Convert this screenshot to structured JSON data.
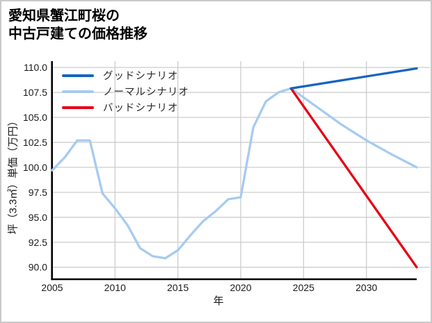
{
  "chart_data": {
    "type": "line",
    "title": "愛知県蟹江町桜の中古戸建ての価格推移",
    "title_lines": [
      "愛知県蟹江町桜の",
      "中古戸建ての価格推移"
    ],
    "xlabel": "年",
    "ylabel": "坪（3.3㎡）単価（万円）",
    "xlim": [
      2005,
      2034
    ],
    "ylim": [
      88.8,
      110.6
    ],
    "xticks": [
      2005,
      2010,
      2015,
      2020,
      2025,
      2030
    ],
    "yticks": [
      90.0,
      92.5,
      95.0,
      97.5,
      100.0,
      102.5,
      105.0,
      107.5,
      110.0
    ],
    "ytick_labels": [
      "90.0",
      "92.5",
      "95.0",
      "97.5",
      "100.0",
      "102.5",
      "105.0",
      "107.5",
      "110.0"
    ],
    "grid": true,
    "legend_position": "upper-left",
    "series": [
      {
        "name": "グッドシナリオ",
        "color": "#1565c0",
        "zorder": 3,
        "x": [
          2024,
          2034
        ],
        "values": [
          107.9,
          109.9
        ]
      },
      {
        "name": "ノーマルシナリオ",
        "color": "#a6cbf0",
        "zorder": 1,
        "x": [
          2005,
          2006,
          2007,
          2008,
          2009,
          2010,
          2011,
          2012,
          2013,
          2014,
          2015,
          2016,
          2017,
          2018,
          2019,
          2020,
          2021,
          2022,
          2023,
          2024,
          2026,
          2028,
          2030,
          2032,
          2034
        ],
        "values": [
          99.7,
          101.0,
          102.7,
          102.7,
          97.4,
          95.9,
          94.2,
          91.9,
          91.1,
          90.9,
          91.7,
          93.2,
          94.6,
          95.6,
          96.8,
          97.0,
          104.0,
          106.6,
          107.5,
          107.9,
          106.1,
          104.3,
          102.7,
          101.3,
          100.0
        ]
      },
      {
        "name": "バッドシナリオ",
        "color": "#e60012",
        "zorder": 2,
        "x": [
          2024,
          2034
        ],
        "values": [
          107.9,
          90.0
        ]
      }
    ],
    "colors": {
      "grid": "#cdcdcd",
      "spine": "#000000",
      "tick_label": "#1a1a1a",
      "border": "#c9c9c9"
    }
  }
}
